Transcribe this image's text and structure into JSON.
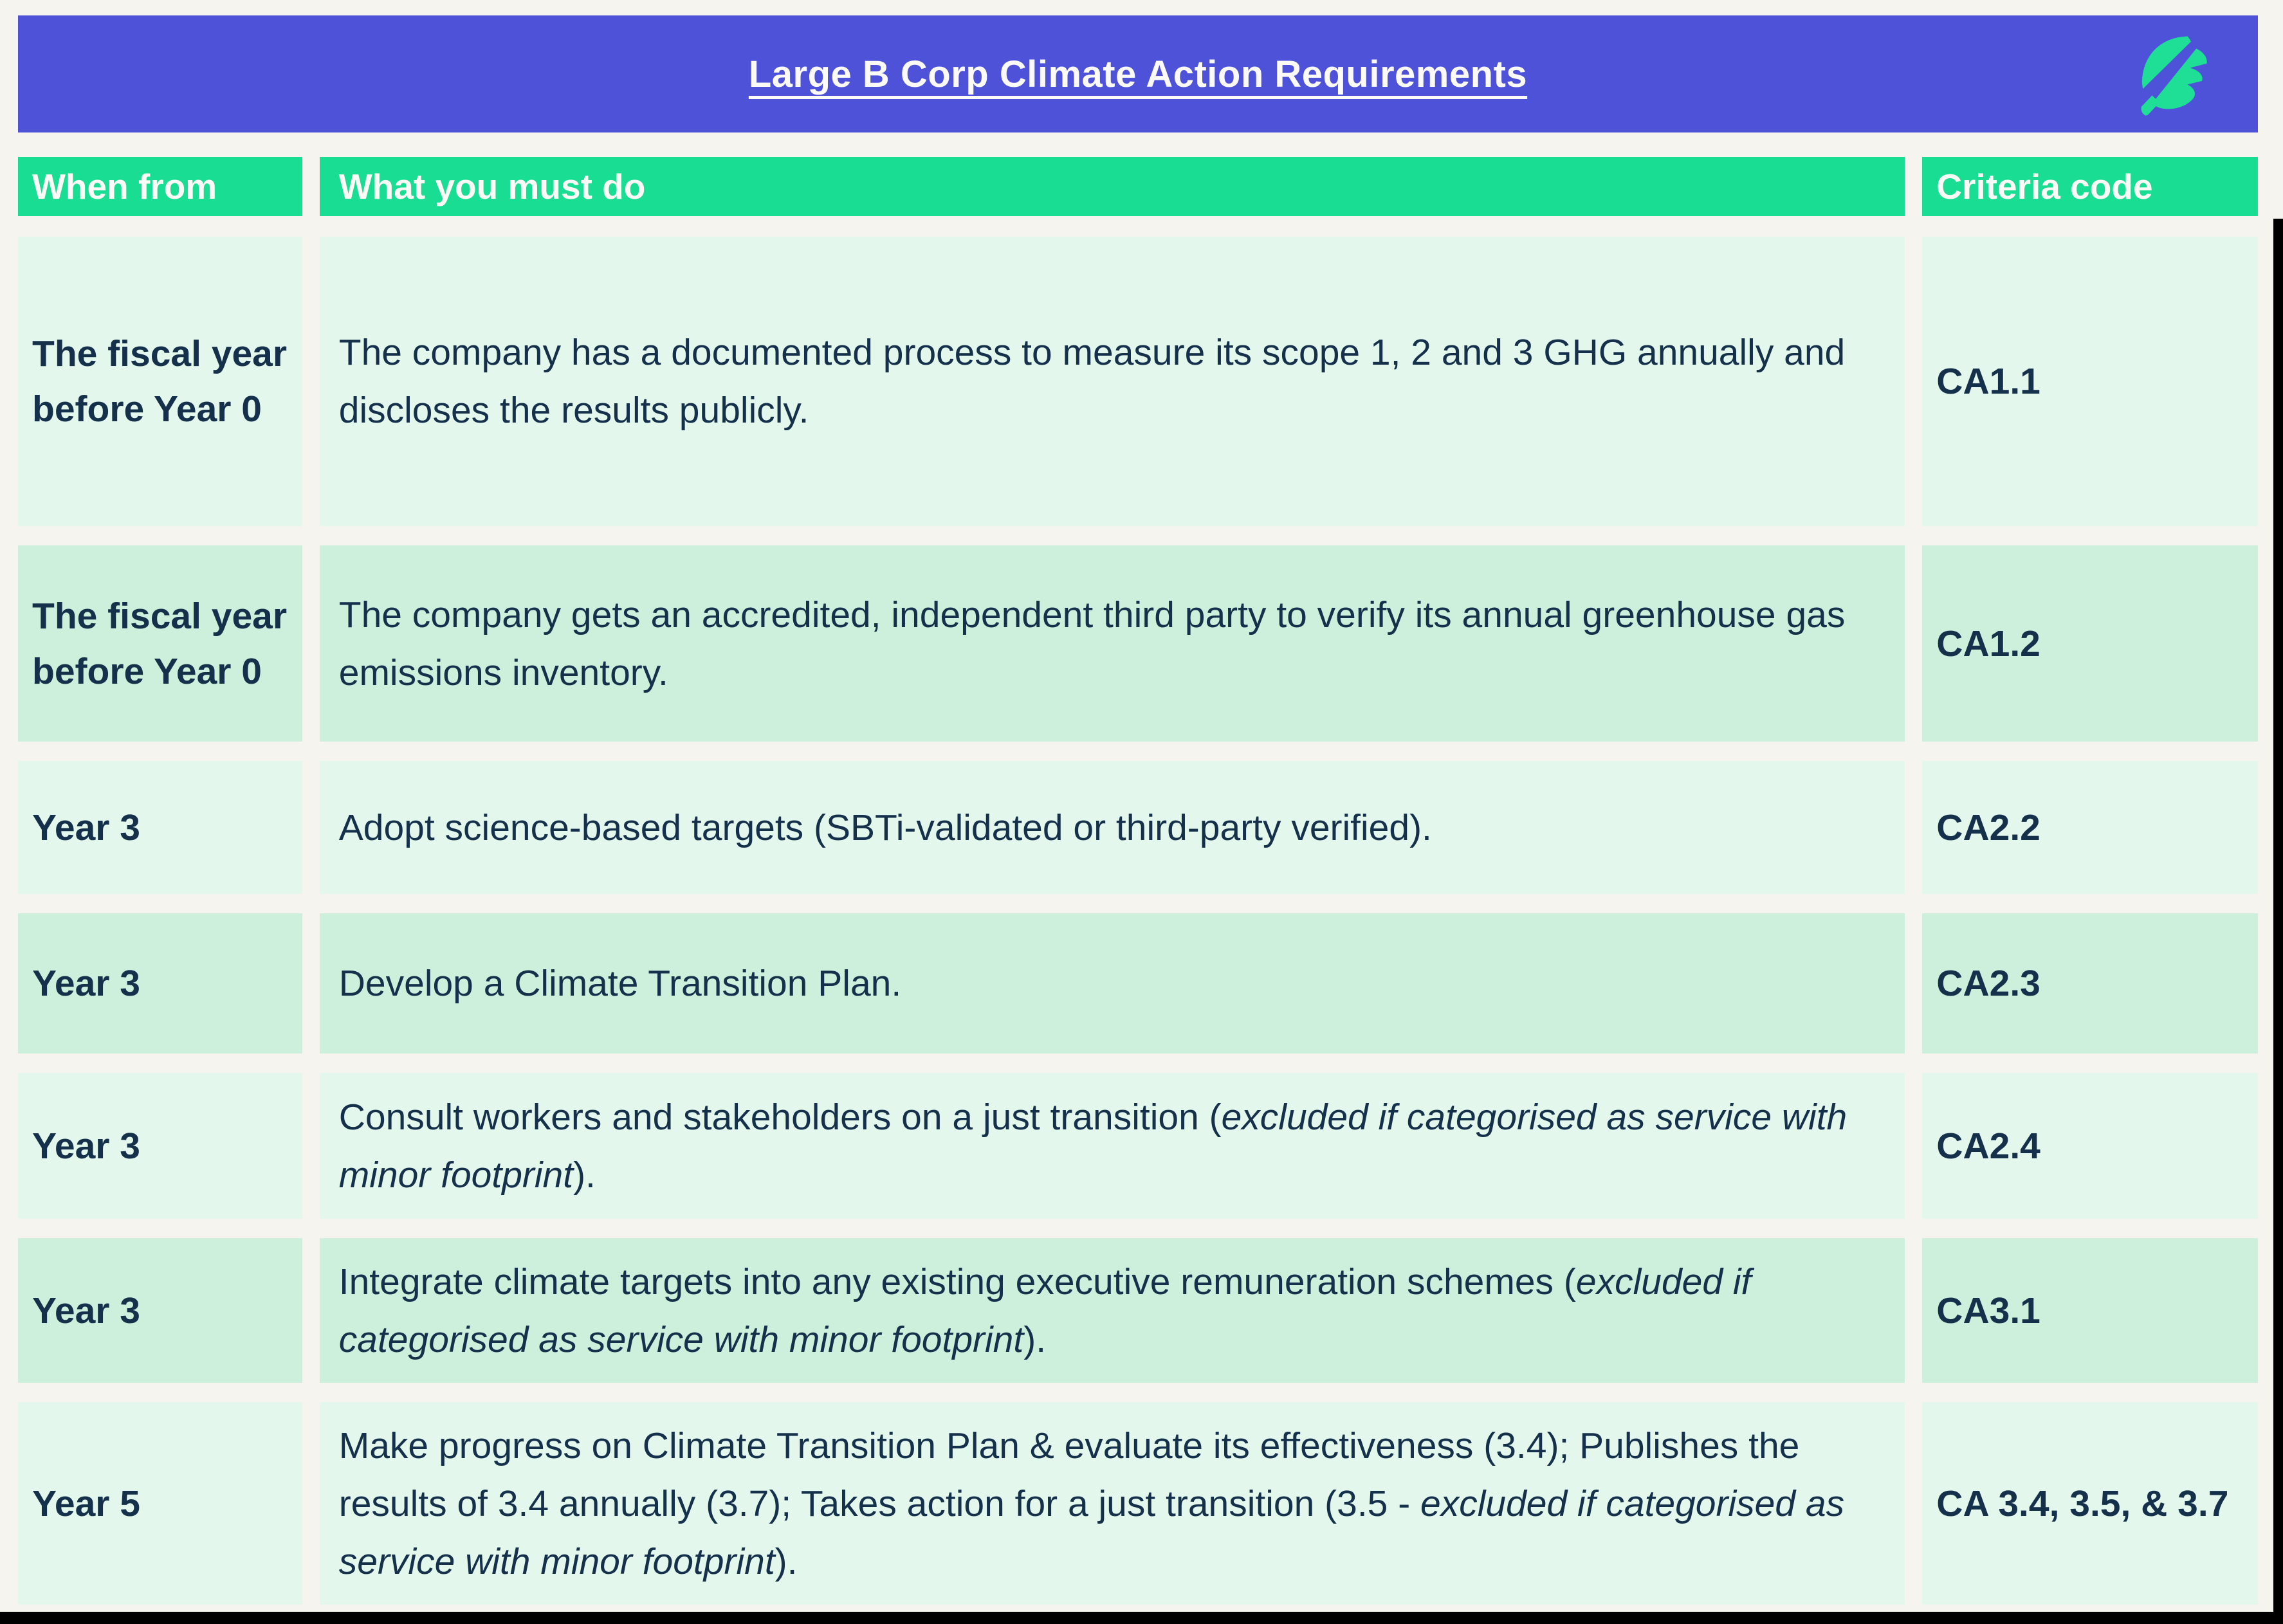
{
  "title": "Large B Corp Climate Action Requirements",
  "logo": {
    "icon": "leaf-icon",
    "color": "#1fde95"
  },
  "colors": {
    "header_bar": "#4e52d9",
    "column_header_bg": "#19dd92",
    "row_light_bg": "#e4f7ec",
    "row_dark_bg": "#cdf0dc",
    "text": "#14304a",
    "page_bg": "#f6f4ef",
    "header_text": "#fbfaf7"
  },
  "columns": [
    {
      "label": "When from"
    },
    {
      "label": "What you must do"
    },
    {
      "label": "Criteria code"
    }
  ],
  "rows": [
    {
      "when": "The fiscal year before Year 0",
      "what": [
        {
          "text": "The company has a documented process to measure its scope 1, 2 and 3 GHG annually and discloses the results publicly.",
          "italic": false
        }
      ],
      "code": "CA1.1"
    },
    {
      "when": "The fiscal year before Year 0",
      "what": [
        {
          "text": "The company gets an accredited, independent third party to verify its annual greenhouse gas emissions inventory.",
          "italic": false
        }
      ],
      "code": "CA1.2"
    },
    {
      "when": "Year 3",
      "what": [
        {
          "text": "Adopt science-based targets (SBTi-validated or third-party verified).",
          "italic": false
        }
      ],
      "code": "CA2.2"
    },
    {
      "when": "Year 3",
      "what": [
        {
          "text": "Develop a Climate Transition Plan.",
          "italic": false
        }
      ],
      "code": "CA2.3"
    },
    {
      "when": "Year 3",
      "what": [
        {
          "text": "Consult workers and stakeholders on a just transition (",
          "italic": false
        },
        {
          "text": "excluded if categorised as service with minor footprint",
          "italic": true
        },
        {
          "text": ").",
          "italic": false
        }
      ],
      "code": "CA2.4"
    },
    {
      "when": "Year 3",
      "what": [
        {
          "text": "Integrate climate targets into any existing executive remuneration schemes (",
          "italic": false
        },
        {
          "text": "excluded if categorised as service with minor footprint",
          "italic": true
        },
        {
          "text": ").",
          "italic": false
        }
      ],
      "code": "CA3.1"
    },
    {
      "when": "Year 5",
      "what": [
        {
          "text": "Make progress on Climate Transition Plan & evaluate its effectiveness (3.4); Publishes the results of 3.4 annually (3.7); Takes action for a just transition (3.5 - ",
          "italic": false
        },
        {
          "text": "excluded if categorised as service with minor footprint",
          "italic": true
        },
        {
          "text": ").",
          "italic": false
        }
      ],
      "code": "CA 3.4, 3.5, & 3.7"
    }
  ]
}
